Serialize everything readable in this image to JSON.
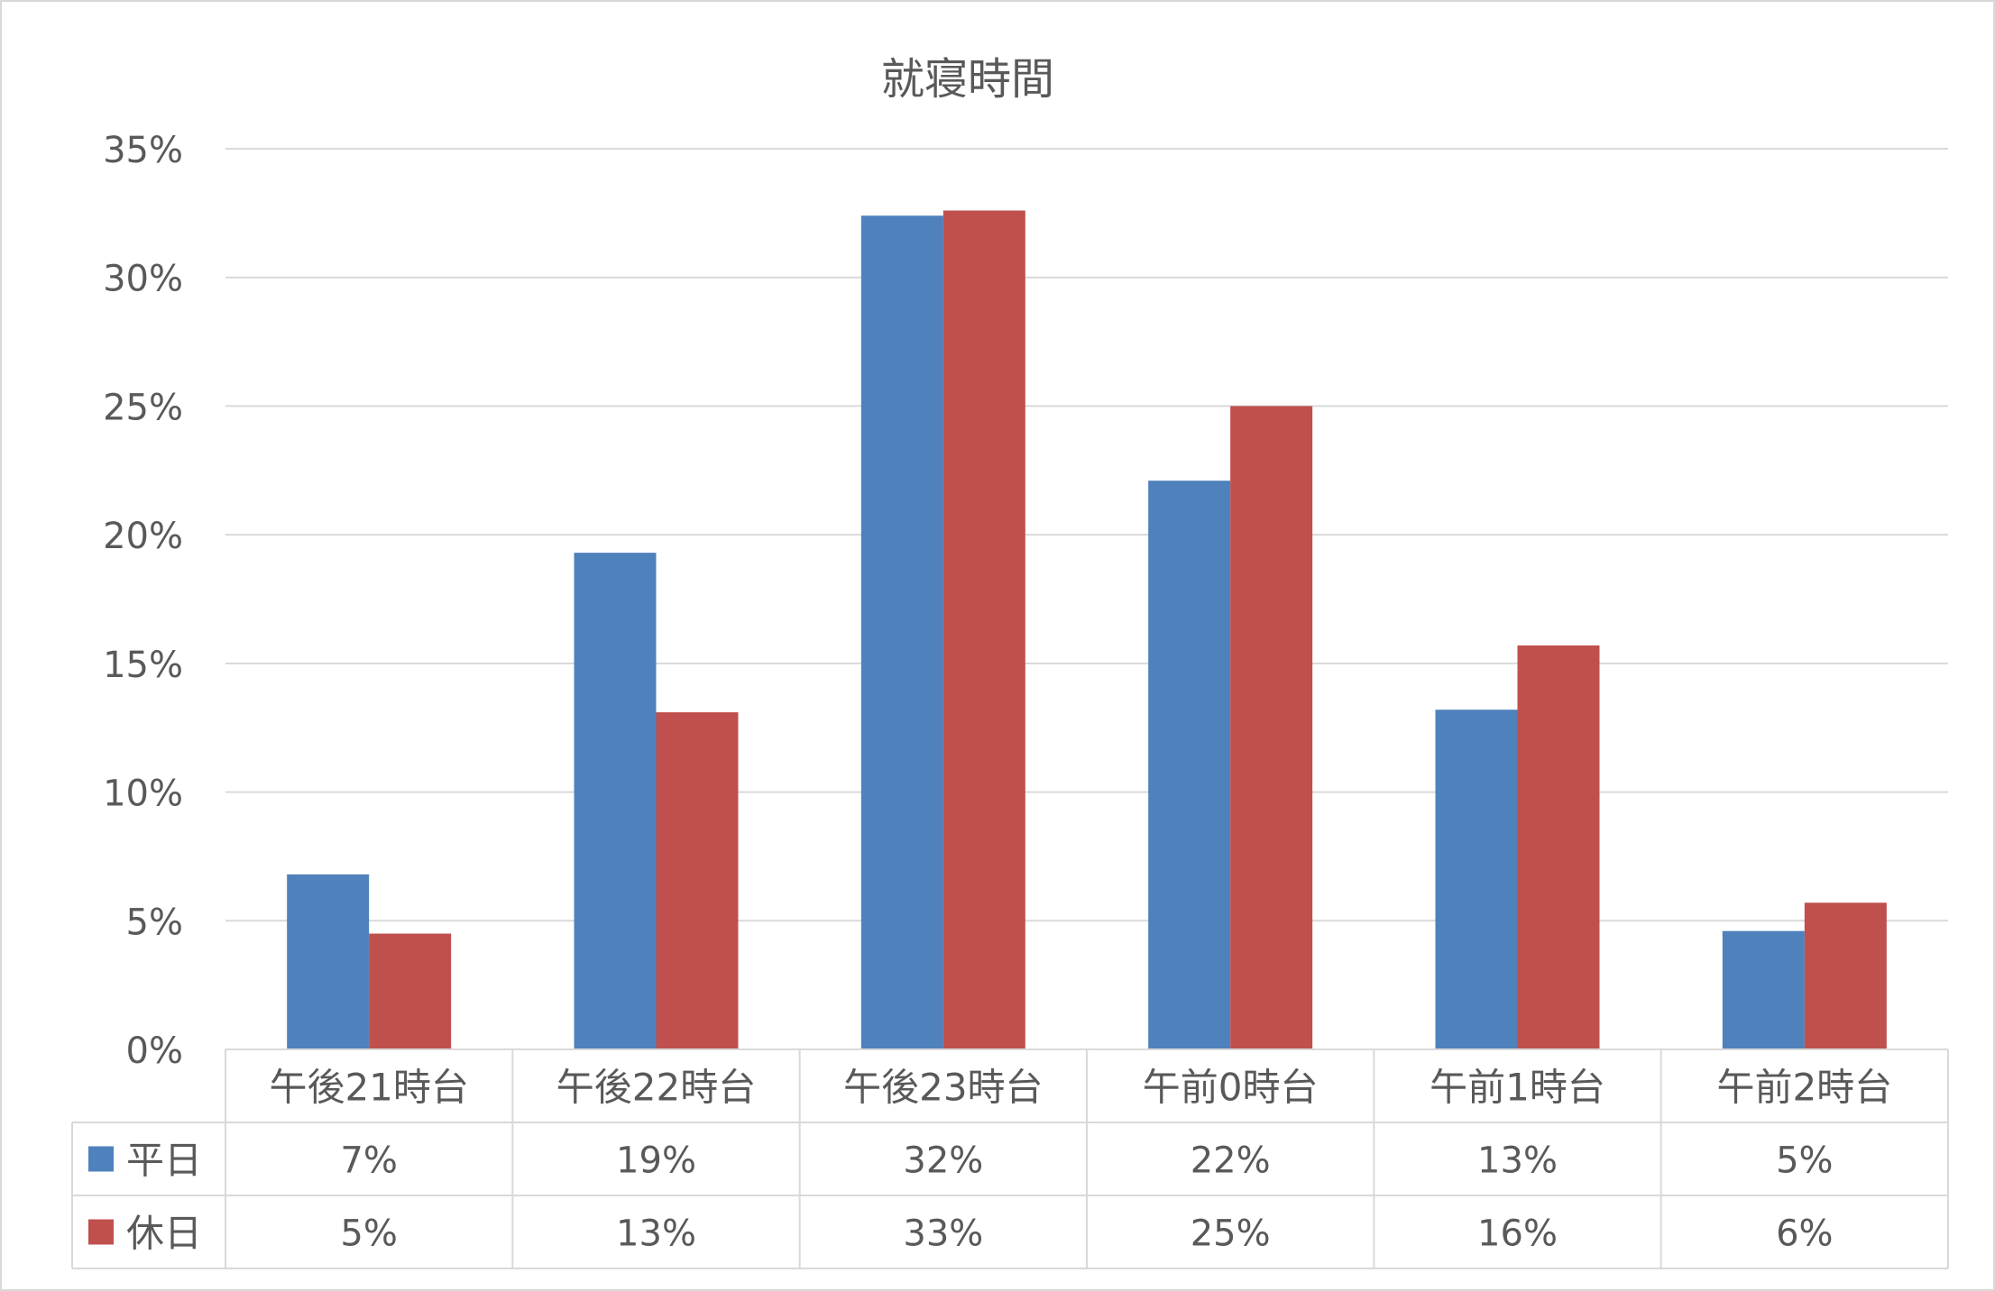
{
  "chart_data": {
    "type": "bar",
    "title": "就寝時間",
    "categories": [
      "午後21時台",
      "午後22時台",
      "午後23時台",
      "午前0時台",
      "午前1時台",
      "午前2時台"
    ],
    "series": [
      {
        "name": "平日",
        "color": "#4F81BD",
        "values": [
          6.8,
          19.3,
          32.4,
          22.1,
          13.2,
          4.6
        ],
        "table_labels": [
          "7%",
          "19%",
          "32%",
          "22%",
          "13%",
          "5%"
        ]
      },
      {
        "name": "休日",
        "color": "#C0504D",
        "values": [
          4.5,
          13.1,
          32.6,
          25.0,
          15.7,
          5.7
        ],
        "table_labels": [
          "5%",
          "13%",
          "33%",
          "25%",
          "16%",
          "6%"
        ]
      }
    ],
    "ylim": [
      0,
      35
    ],
    "y_ticks": [
      0,
      5,
      10,
      15,
      20,
      25,
      30,
      35
    ],
    "y_tick_labels": [
      "0%",
      "5%",
      "10%",
      "15%",
      "20%",
      "25%",
      "30%",
      "35%"
    ],
    "grid": true,
    "data_table": true,
    "legend": "in data table (left)"
  }
}
